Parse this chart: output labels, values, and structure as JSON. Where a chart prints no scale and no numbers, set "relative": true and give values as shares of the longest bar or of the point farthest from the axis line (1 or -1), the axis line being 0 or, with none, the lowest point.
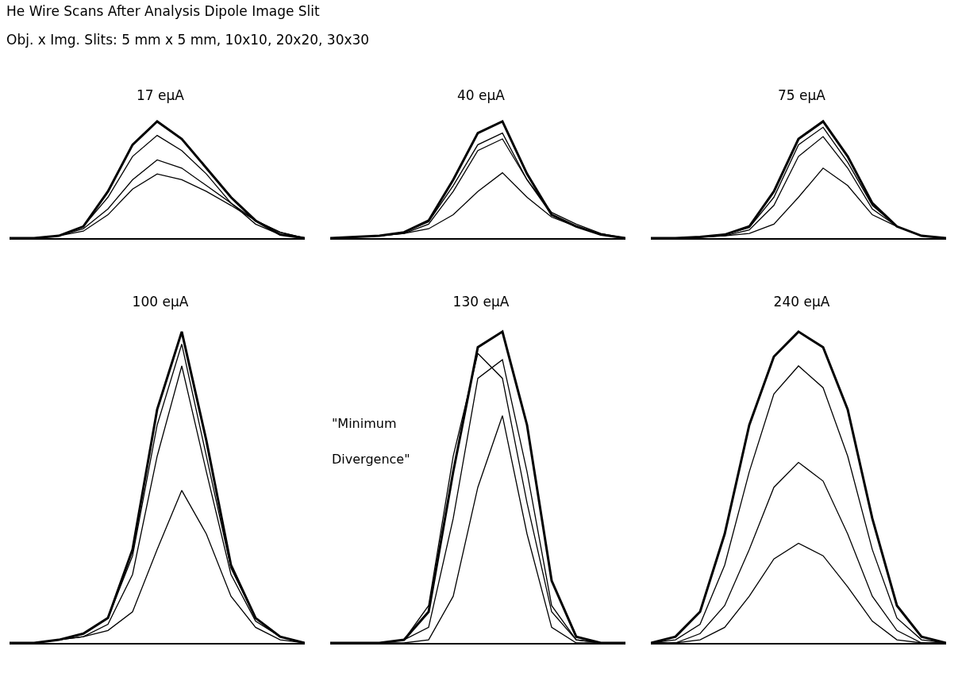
{
  "chart_data": [
    {
      "type": "line",
      "title": "17 eμA",
      "relative": true,
      "legend": false,
      "marker": "none",
      "line_style": "solid",
      "annotations": [
        "He  Wire Scans After Analysis Dipole Image Slit",
        "Obj. x Img. Slits: 5 mm x 5 mm, 10x10, 20x20, 30x30"
      ],
      "categories": [
        null,
        null,
        null,
        null,
        null,
        null,
        null,
        null,
        null,
        null,
        null,
        null,
        null
      ],
      "series": [
        {
          "color": "#000000",
          "values": [
            0,
            0,
            0.02,
            0.1,
            0.4,
            0.8,
            1,
            0.85,
            0.6,
            0.35,
            0.15,
            0.03,
            0
          ]
        },
        {
          "color": "#000000",
          "values": [
            0,
            0,
            0.02,
            0.1,
            0.35,
            0.7,
            0.88,
            0.75,
            0.55,
            0.3,
            0.12,
            0.03,
            0
          ]
        },
        {
          "color": "#000000",
          "values": [
            0,
            0,
            0.02,
            0.08,
            0.25,
            0.5,
            0.67,
            0.6,
            0.45,
            0.3,
            0.15,
            0.05,
            0
          ]
        },
        {
          "color": "#000000",
          "values": [
            0,
            0,
            0.02,
            0.06,
            0.2,
            0.42,
            0.55,
            0.5,
            0.4,
            0.28,
            0.15,
            0.05,
            0
          ]
        }
      ]
    },
    {
      "type": "line",
      "title": "40 eμA",
      "relative": true,
      "legend": false,
      "marker": "none",
      "line_style": "solid",
      "categories": [
        null,
        null,
        null,
        null,
        null,
        null,
        null,
        null,
        null,
        null,
        null,
        null,
        null
      ],
      "series": [
        {
          "color": "#000000",
          "values": [
            0,
            0.01,
            0.02,
            0.05,
            0.15,
            0.5,
            0.9,
            1,
            0.55,
            0.2,
            0.1,
            0.03,
            0
          ]
        },
        {
          "color": "#000000",
          "values": [
            0,
            0.01,
            0.02,
            0.05,
            0.14,
            0.45,
            0.8,
            0.9,
            0.5,
            0.2,
            0.1,
            0.03,
            0
          ]
        },
        {
          "color": "#000000",
          "values": [
            0,
            0.01,
            0.02,
            0.04,
            0.12,
            0.4,
            0.75,
            0.85,
            0.5,
            0.22,
            0.12,
            0.04,
            0
          ]
        },
        {
          "color": "#000000",
          "values": [
            0,
            0.01,
            0.02,
            0.04,
            0.08,
            0.2,
            0.4,
            0.56,
            0.35,
            0.18,
            0.1,
            0.03,
            0
          ]
        }
      ]
    },
    {
      "type": "line",
      "title": "75 eμA",
      "relative": true,
      "legend": false,
      "marker": "none",
      "line_style": "solid",
      "categories": [
        null,
        null,
        null,
        null,
        null,
        null,
        null,
        null,
        null,
        null,
        null,
        null,
        null
      ],
      "series": [
        {
          "color": "#000000",
          "values": [
            0,
            0,
            0.01,
            0.03,
            0.1,
            0.4,
            0.85,
            1,
            0.7,
            0.3,
            0.1,
            0.02,
            0
          ]
        },
        {
          "color": "#000000",
          "values": [
            0,
            0,
            0.01,
            0.03,
            0.09,
            0.35,
            0.8,
            0.95,
            0.65,
            0.28,
            0.1,
            0.02,
            0
          ]
        },
        {
          "color": "#000000",
          "values": [
            0,
            0,
            0.01,
            0.02,
            0.07,
            0.28,
            0.7,
            0.87,
            0.6,
            0.25,
            0.1,
            0.02,
            0
          ]
        },
        {
          "color": "#000000",
          "values": [
            0,
            0,
            0.01,
            0.02,
            0.04,
            0.12,
            0.35,
            0.6,
            0.45,
            0.2,
            0.1,
            0.02,
            0
          ]
        }
      ]
    },
    {
      "type": "line",
      "title": "100 eμA",
      "relative": true,
      "legend": false,
      "marker": "none",
      "line_style": "solid",
      "categories": [
        null,
        null,
        null,
        null,
        null,
        null,
        null,
        null,
        null,
        null,
        null,
        null,
        null
      ],
      "series": [
        {
          "color": "#000000",
          "values": [
            0,
            0,
            0.01,
            0.03,
            0.08,
            0.3,
            0.75,
            1,
            0.65,
            0.25,
            0.08,
            0.02,
            0
          ]
        },
        {
          "color": "#000000",
          "values": [
            0,
            0,
            0.01,
            0.03,
            0.08,
            0.28,
            0.7,
            0.96,
            0.6,
            0.24,
            0.08,
            0.02,
            0
          ]
        },
        {
          "color": "#000000",
          "values": [
            0,
            0,
            0.01,
            0.02,
            0.06,
            0.22,
            0.6,
            0.89,
            0.55,
            0.22,
            0.07,
            0.02,
            0
          ]
        },
        {
          "color": "#000000",
          "values": [
            0,
            0,
            0.01,
            0.02,
            0.04,
            0.1,
            0.3,
            0.49,
            0.35,
            0.15,
            0.05,
            0.01,
            0
          ]
        }
      ]
    },
    {
      "type": "line",
      "title": "130 eμA",
      "relative": true,
      "legend": false,
      "marker": "none",
      "line_style": "solid",
      "annotations": [
        "\"Minimum",
        "Divergence\""
      ],
      "categories": [
        null,
        null,
        null,
        null,
        null,
        null,
        null,
        null,
        null,
        null,
        null,
        null,
        null
      ],
      "series": [
        {
          "color": "#000000",
          "values": [
            0,
            0,
            0,
            0.01,
            0.1,
            0.55,
            0.95,
            1,
            0.7,
            0.2,
            0.02,
            0,
            0
          ]
        },
        {
          "color": "#000000",
          "values": [
            0,
            0,
            0,
            0.01,
            0.12,
            0.6,
            0.93,
            0.85,
            0.45,
            0.1,
            0.01,
            0,
            0
          ]
        },
        {
          "color": "#000000",
          "values": [
            0,
            0,
            0,
            0.01,
            0.05,
            0.4,
            0.85,
            0.91,
            0.55,
            0.12,
            0.01,
            0,
            0
          ]
        },
        {
          "color": "#000000",
          "values": [
            0,
            0,
            0,
            0,
            0.01,
            0.15,
            0.5,
            0.73,
            0.35,
            0.05,
            0,
            0,
            0
          ]
        }
      ]
    },
    {
      "type": "line",
      "title": "240 eμA",
      "relative": true,
      "legend": false,
      "marker": "none",
      "line_style": "solid",
      "categories": [
        null,
        null,
        null,
        null,
        null,
        null,
        null,
        null,
        null,
        null,
        null,
        null,
        null
      ],
      "series": [
        {
          "color": "#000000",
          "values": [
            0,
            0.02,
            0.1,
            0.35,
            0.7,
            0.92,
            1,
            0.95,
            0.75,
            0.4,
            0.12,
            0.02,
            0
          ]
        },
        {
          "color": "#000000",
          "values": [
            0,
            0.01,
            0.06,
            0.25,
            0.55,
            0.8,
            0.89,
            0.82,
            0.6,
            0.3,
            0.08,
            0.01,
            0
          ]
        },
        {
          "color": "#000000",
          "values": [
            0,
            0,
            0.03,
            0.12,
            0.3,
            0.5,
            0.58,
            0.52,
            0.35,
            0.15,
            0.04,
            0,
            0
          ]
        },
        {
          "color": "#000000",
          "values": [
            0,
            0,
            0.01,
            0.05,
            0.15,
            0.27,
            0.32,
            0.28,
            0.18,
            0.07,
            0.01,
            0,
            0
          ]
        }
      ]
    }
  ]
}
